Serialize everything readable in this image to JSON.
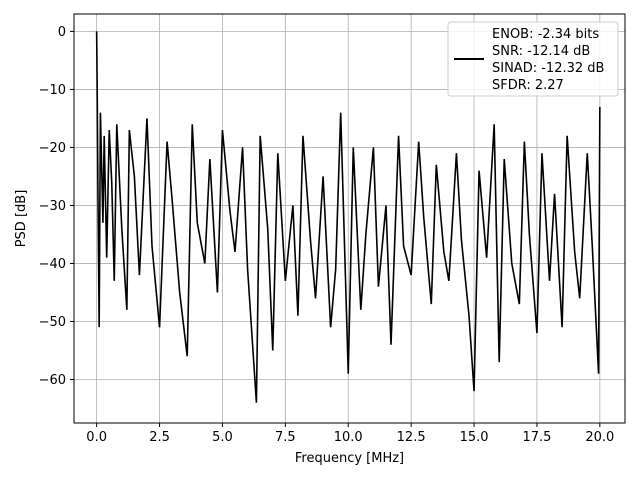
{
  "chart_data": {
    "type": "line",
    "title": "",
    "xlabel": "Frequency [MHz]",
    "ylabel": "PSD [dB]",
    "xlim": [
      -0.9,
      21.0
    ],
    "ylim": [
      -67.5,
      3.0
    ],
    "xticks": [
      0.0,
      2.5,
      5.0,
      7.5,
      10.0,
      12.5,
      15.0,
      17.5,
      20.0
    ],
    "xtick_labels": [
      "0.0",
      "2.5",
      "5.0",
      "7.5",
      "10.0",
      "12.5",
      "15.0",
      "17.5",
      "20.0"
    ],
    "yticks": [
      0,
      -10,
      -20,
      -30,
      -40,
      -50,
      -60
    ],
    "ytick_labels": [
      "0",
      "−10",
      "−20",
      "−30",
      "−40",
      "−50",
      "−60"
    ],
    "grid": true,
    "legend_position": "top-right",
    "line_color": "#000000",
    "series": [
      {
        "x": [
          0.0,
          0.02,
          0.05,
          0.1,
          0.15,
          0.25,
          0.3,
          0.4,
          0.5,
          0.6,
          0.7,
          0.8,
          1.0,
          1.2,
          1.3,
          1.5,
          1.7,
          2.0,
          2.2,
          2.5,
          2.8,
          3.0,
          3.3,
          3.6,
          3.8,
          4.0,
          4.3,
          4.5,
          4.8,
          5.0,
          5.3,
          5.5,
          5.8,
          6.0,
          6.35,
          6.5,
          6.8,
          7.0,
          7.2,
          7.5,
          7.8,
          8.0,
          8.2,
          8.5,
          8.7,
          9.0,
          9.3,
          9.5,
          9.7,
          10.0,
          10.2,
          10.5,
          10.7,
          11.0,
          11.2,
          11.5,
          11.7,
          12.0,
          12.2,
          12.5,
          12.8,
          13.0,
          13.3,
          13.5,
          13.8,
          14.0,
          14.3,
          14.5,
          14.8,
          15.0,
          15.2,
          15.5,
          15.8,
          16.0,
          16.2,
          16.5,
          16.8,
          17.0,
          17.2,
          17.5,
          17.7,
          18.0,
          18.2,
          18.5,
          18.7,
          19.0,
          19.2,
          19.5,
          19.7,
          19.95,
          20.0
        ],
        "y": [
          0,
          -9,
          -27,
          -51,
          -14,
          -33,
          -18,
          -39,
          -17,
          -26,
          -43,
          -16,
          -34,
          -48,
          -17,
          -25,
          -42,
          -15,
          -37,
          -51,
          -19,
          -29,
          -45,
          -56,
          -16,
          -33,
          -40,
          -22,
          -45,
          -17,
          -31,
          -38,
          -20,
          -41,
          -64,
          -18,
          -34,
          -55,
          -21,
          -43,
          -30,
          -49,
          -18,
          -36,
          -46,
          -25,
          -51,
          -41,
          -14,
          -59,
          -20,
          -48,
          -35,
          -20,
          -44,
          -30,
          -54,
          -18,
          -37,
          -42,
          -19,
          -32,
          -47,
          -23,
          -38,
          -43,
          -21,
          -36,
          -49,
          -62,
          -24,
          -39,
          -16,
          -57,
          -22,
          -40,
          -47,
          -19,
          -35,
          -52,
          -21,
          -43,
          -28,
          -51,
          -18,
          -38,
          -46,
          -21,
          -37,
          -59,
          -13
        ]
      }
    ],
    "legend": {
      "lines": [
        "ENOB: -2.34 bits",
        "SNR: -12.14 dB",
        "SINAD: -12.32 dB",
        "SFDR: 2.27"
      ]
    }
  }
}
